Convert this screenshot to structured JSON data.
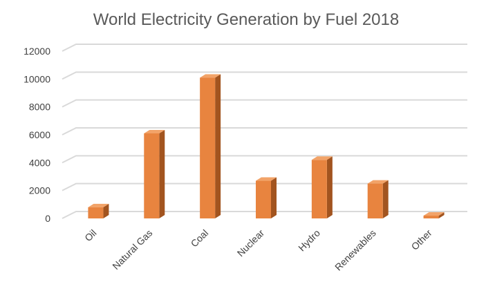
{
  "chart_data": {
    "type": "bar",
    "title": "World Electricity Generation by Fuel 2018",
    "xlabel": "",
    "ylabel": "",
    "categories": [
      "Oil",
      "Natural Gas",
      "Coal",
      "Nuclear",
      "Hydro",
      "Renewables",
      "Other"
    ],
    "values": [
      800,
      6100,
      10100,
      2700,
      4200,
      2500,
      200
    ],
    "yticks": [
      "0",
      "2000",
      "4000",
      "6000",
      "8000",
      "10000",
      "12000"
    ],
    "ylim": [
      0,
      12000
    ],
    "grid": true,
    "legend": "none",
    "style": "3d-column",
    "colors": {
      "bar_front": "#E8843F",
      "bar_side": "#A2541F",
      "bar_top": "#F2A368",
      "grid": "#D9D9D9",
      "text": "#404040",
      "title": "#595959"
    }
  }
}
